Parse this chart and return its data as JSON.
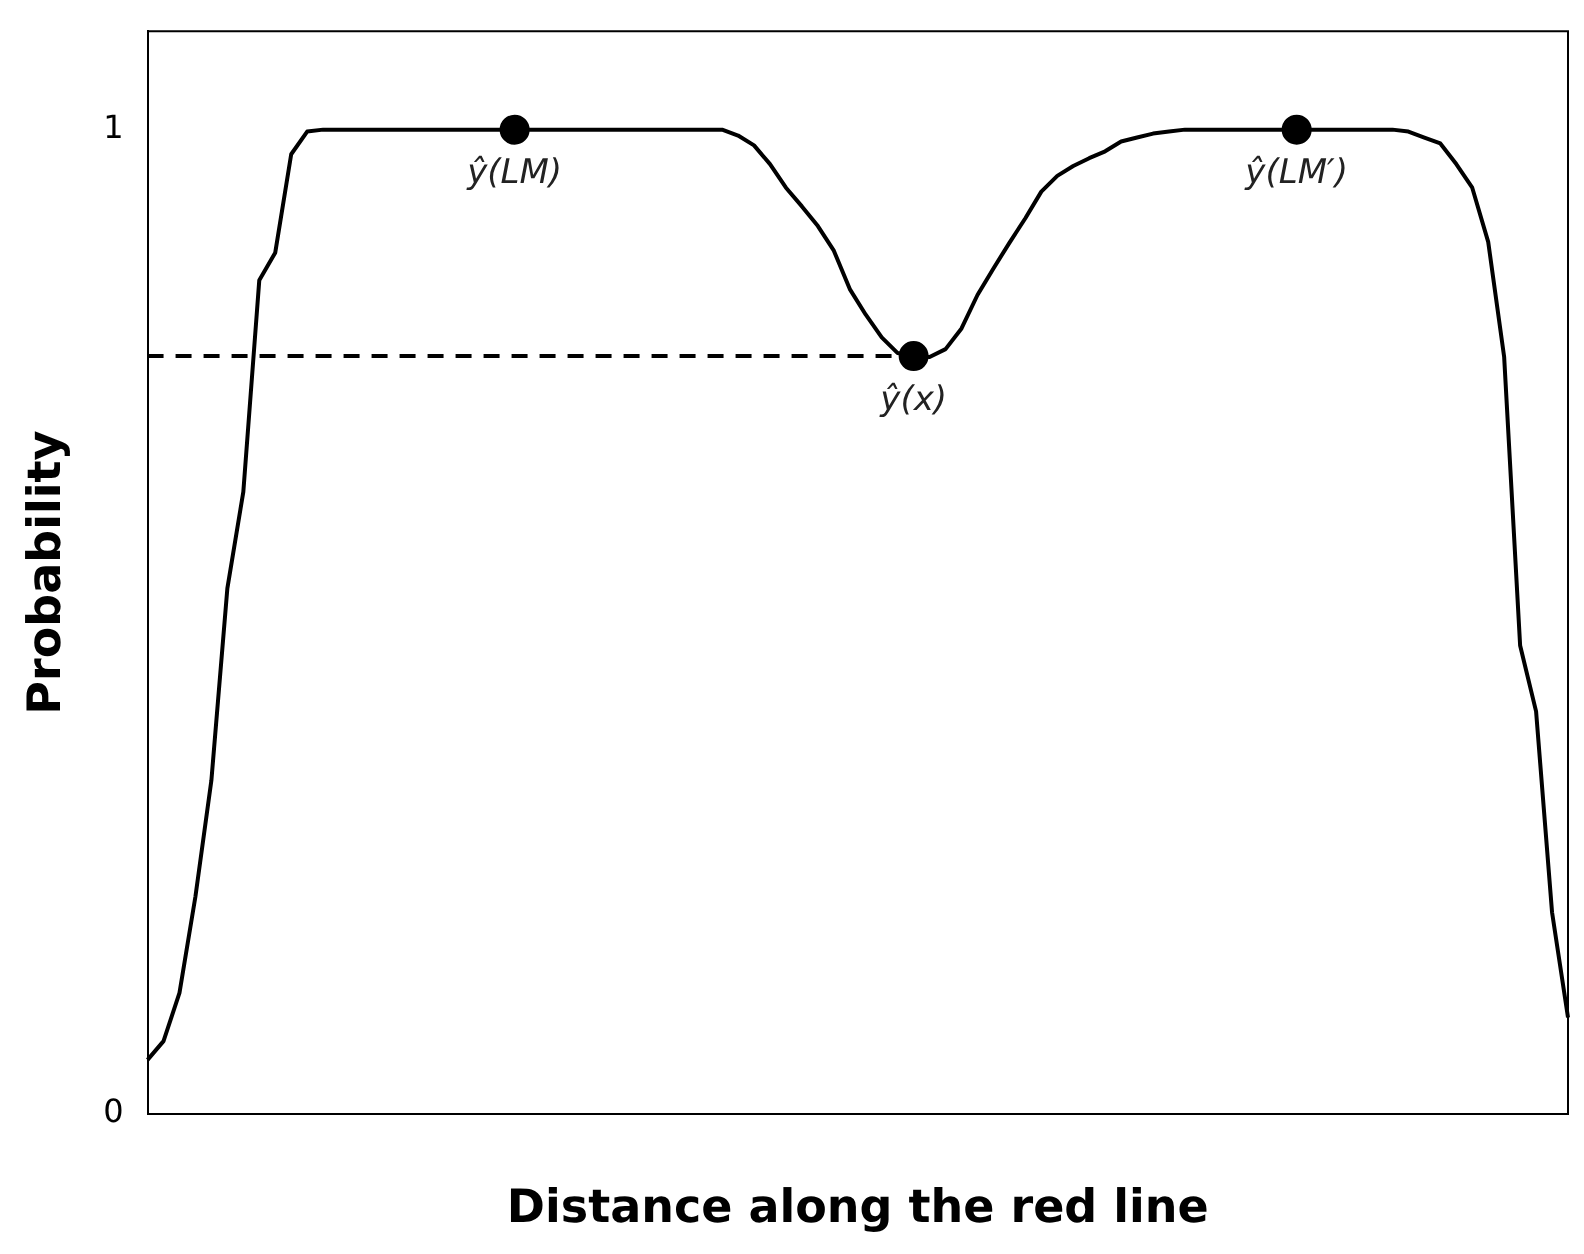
{
  "chart_data": {
    "type": "line",
    "xlabel": "Distance along the red line",
    "ylabel": "Probability",
    "categories": [
      null,
      null,
      null,
      null,
      null,
      null,
      null,
      null,
      null,
      null,
      null,
      null,
      null,
      null,
      null,
      null,
      null,
      null,
      null,
      null,
      null,
      null,
      null,
      null,
      null,
      null,
      null,
      null,
      null,
      null,
      null,
      null,
      null,
      null,
      null,
      null,
      null,
      null,
      null,
      null,
      null,
      null,
      null,
      null,
      null,
      null,
      null,
      null,
      null,
      null,
      null,
      null,
      null,
      null,
      null,
      null,
      null,
      null,
      null,
      null,
      null,
      null,
      null,
      null,
      null,
      null,
      null,
      null,
      null,
      null,
      null,
      null,
      null,
      null,
      null,
      null,
      null,
      null,
      null,
      null,
      null,
      null,
      null,
      null,
      null,
      null,
      null,
      null,
      null,
      null
    ],
    "series": [
      {
        "type": "line",
        "color": "#000000",
        "marker": "none",
        "values": [
          0.055,
          0.074,
          0.123,
          0.221,
          0.339,
          0.534,
          0.632,
          0.847,
          0.875,
          0.975,
          0.998,
          1,
          1,
          1,
          1,
          1,
          1,
          1,
          1,
          1,
          1,
          1,
          1,
          1,
          1,
          1,
          1,
          1,
          1,
          1,
          1,
          1,
          1,
          1,
          1,
          1,
          1,
          0.994,
          0.984,
          0.965,
          0.941,
          0.922,
          0.902,
          0.877,
          0.838,
          0.812,
          0.789,
          0.773,
          0.77,
          0.769,
          0.777,
          0.798,
          0.832,
          0.859,
          0.885,
          0.91,
          0.937,
          0.953,
          0.963,
          0.971,
          0.978,
          0.988,
          0.992,
          0.996,
          0.998,
          1,
          1,
          1,
          1,
          1,
          1,
          1,
          1,
          1,
          1,
          1,
          1,
          1,
          1,
          0.998,
          0.992,
          0.986,
          0.965,
          0.941,
          0.886,
          0.769,
          0.476,
          0.409,
          0.205,
          0.098
        ]
      },
      {
        "type": "line",
        "color": "#000000",
        "marker": "none",
        "line_style": "dashed",
        "values": [
          0.77,
          0.77,
          0.77,
          0.77,
          0.77,
          0.77,
          0.77,
          0.77,
          0.77,
          0.77,
          0.77,
          0.77,
          0.77,
          0.77,
          0.77,
          0.77,
          0.77,
          0.77,
          0.77,
          0.77,
          0.77,
          0.77,
          0.77,
          0.77,
          0.77,
          0.77,
          0.77,
          0.77,
          0.77,
          0.77,
          0.77,
          0.77,
          0.77,
          0.77,
          0.77,
          0.77,
          0.77,
          0.77,
          0.77,
          0.77,
          0.77,
          0.77,
          0.77,
          0.77,
          0.77,
          0.77,
          0.77,
          0.77,
          0.77,
          null,
          null,
          null,
          null,
          null,
          null,
          null,
          null,
          null,
          null,
          null,
          null,
          null,
          null,
          null,
          null,
          null,
          null,
          null,
          null,
          null,
          null,
          null,
          null,
          null,
          null,
          null,
          null,
          null,
          null,
          null,
          null,
          null,
          null,
          null,
          null,
          null,
          null,
          null,
          null,
          null
        ]
      },
      {
        "type": "scatter",
        "color": "#000000",
        "marker": "circle",
        "values": [
          null,
          null,
          null,
          null,
          null,
          null,
          null,
          null,
          null,
          null,
          null,
          null,
          null,
          null,
          null,
          null,
          null,
          null,
          null,
          null,
          null,
          null,
          null,
          1,
          null,
          null,
          null,
          null,
          null,
          null,
          null,
          null,
          null,
          null,
          null,
          null,
          null,
          null,
          null,
          null,
          null,
          null,
          null,
          null,
          null,
          null,
          null,
          null,
          0.77,
          null,
          null,
          null,
          null,
          null,
          null,
          null,
          null,
          null,
          null,
          null,
          null,
          null,
          null,
          null,
          null,
          null,
          null,
          null,
          null,
          null,
          null,
          null,
          1,
          null,
          null,
          null,
          null,
          null,
          null,
          null,
          null,
          null,
          null,
          null,
          null,
          null,
          null,
          null,
          null,
          null
        ],
        "value_labels": [
          null,
          null,
          null,
          null,
          null,
          null,
          null,
          null,
          null,
          null,
          null,
          null,
          null,
          null,
          null,
          null,
          null,
          null,
          null,
          null,
          null,
          null,
          null,
          "ŷ(LM)",
          null,
          null,
          null,
          null,
          null,
          null,
          null,
          null,
          null,
          null,
          null,
          null,
          null,
          null,
          null,
          null,
          null,
          null,
          null,
          null,
          null,
          null,
          null,
          null,
          "ŷ(x)",
          null,
          null,
          null,
          null,
          null,
          null,
          null,
          null,
          null,
          null,
          null,
          null,
          null,
          null,
          null,
          null,
          null,
          null,
          null,
          null,
          null,
          null,
          null,
          "ŷ(LM′)",
          null,
          null,
          null,
          null,
          null,
          null,
          null,
          null,
          null,
          null,
          null,
          null,
          null,
          null,
          null,
          null,
          null
        ]
      }
    ],
    "ylim": [
      0,
      1.1
    ],
    "yticks": [
      0,
      1
    ],
    "grid": false,
    "legend": false
  }
}
